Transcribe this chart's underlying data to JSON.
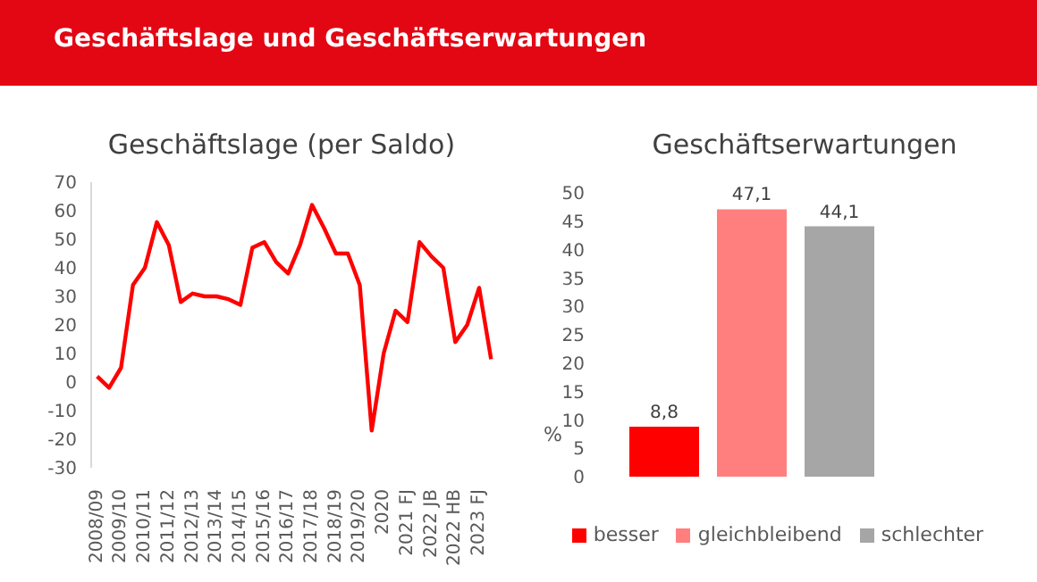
{
  "chart_data": [
    {
      "type": "other",
      "title": "Geschäftslage und Geschäftserwartungen"
    },
    {
      "type": "line",
      "title": "Geschäftslage (per Saldo)",
      "categories": [
        "2008/09",
        null,
        "2009/10",
        null,
        "2010/11",
        null,
        "2011/12",
        null,
        "2012/13",
        null,
        "2013/14",
        null,
        "2014/15",
        null,
        "2015/16",
        null,
        "2016/17",
        null,
        "2017/18",
        null,
        "2018/19",
        null,
        "2019/20",
        null,
        "2020",
        null,
        "2021 FJ",
        null,
        "2022 JB",
        null,
        "2022 HB",
        null,
        "2023 FJ",
        null
      ],
      "series": [
        {
          "color": "#ff0000",
          "values": [
            2,
            -2,
            5,
            34,
            40,
            56,
            48,
            28,
            31,
            30,
            30,
            29,
            27,
            47,
            49,
            42,
            38,
            48,
            62,
            54,
            45,
            45,
            34,
            -17,
            10,
            25,
            21,
            49,
            44,
            40,
            14,
            20,
            33,
            8
          ]
        }
      ],
      "ylim": [
        -30,
        70
      ],
      "yticks": [
        -30,
        -20,
        -10,
        0,
        10,
        20,
        30,
        40,
        50,
        60,
        70
      ],
      "grid": false,
      "legend": false,
      "marker": "none",
      "line_style": "solid"
    },
    {
      "type": "bar",
      "title": "Geschäftserwartungen",
      "ylabel": "%",
      "categories": [
        null
      ],
      "series": [
        {
          "name": "besser",
          "color": "#ff0000",
          "values": [
            8.8
          ]
        },
        {
          "name": "gleichbleibend",
          "color": "#ff7f7f",
          "values": [
            47.1
          ]
        },
        {
          "name": "schlechter",
          "color": "#a6a6a6",
          "values": [
            44.1
          ]
        }
      ],
      "value_labels": [
        "8,8",
        "47,1",
        "44,1"
      ],
      "ylim": [
        0,
        50
      ],
      "yticks": [
        0,
        5,
        10,
        15,
        20,
        25,
        30,
        35,
        40,
        45,
        50
      ],
      "grid": false,
      "legend": "bottom"
    }
  ]
}
